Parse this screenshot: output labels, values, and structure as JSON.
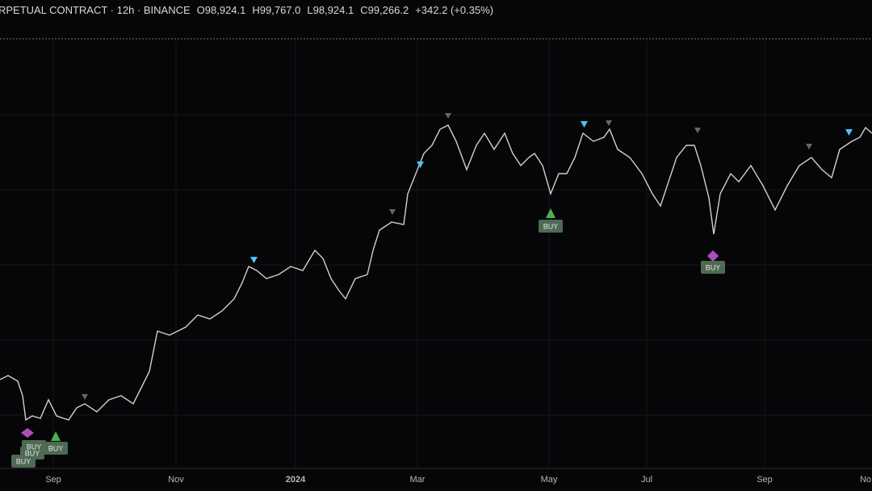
{
  "header": {
    "symbol": "RPETUAL CONTRACT · 12h · BINANCE",
    "open": "O98,924.1",
    "high": "H99,767.0",
    "low": "L98,924.1",
    "close": "C99,266.2",
    "change": "+342.2 (+0.35%)"
  },
  "x_axis_labels": [
    "Sep",
    "Nov",
    "2024",
    "Mar",
    "May",
    "Jul",
    "Sep",
    "No"
  ],
  "signals": [
    "BUY",
    "BUY",
    "BUY",
    "BUY",
    "BUY",
    "BUY"
  ]
}
